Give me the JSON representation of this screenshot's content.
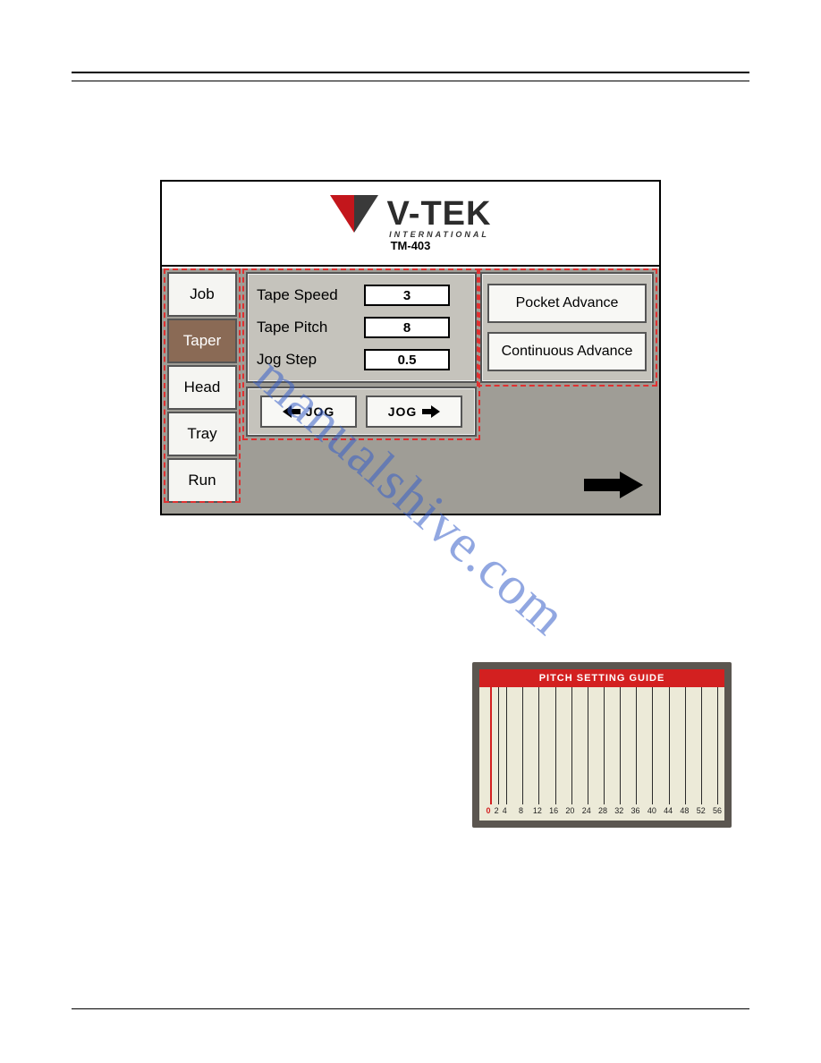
{
  "brand": "V-TEK",
  "intl": "INTERNATIONAL",
  "model": "TM-403",
  "sidebar": {
    "items": [
      {
        "label": "Job"
      },
      {
        "label": "Taper"
      },
      {
        "label": "Head"
      },
      {
        "label": "Tray"
      },
      {
        "label": "Run"
      }
    ],
    "active_index": 1
  },
  "params": {
    "tape_speed": {
      "label": "Tape Speed",
      "value": "3"
    },
    "tape_pitch": {
      "label": "Tape Pitch",
      "value": "8"
    },
    "jog_step": {
      "label": "Jog Step",
      "value": "0.5"
    }
  },
  "jog": {
    "left_label": "JOG",
    "right_label": "JOG"
  },
  "advance": {
    "pocket": "Pocket Advance",
    "continuous": "Continuous Advance"
  },
  "watermark": "manualshive.com",
  "pitch_guide": {
    "title": "PITCH SETTING GUIDE",
    "ticks": [
      0,
      2,
      4,
      8,
      12,
      16,
      20,
      24,
      28,
      32,
      36,
      40,
      44,
      48,
      52,
      56
    ],
    "max": 56,
    "title_bg": "#d32020",
    "card_bg": "#ecead8",
    "frame_bg": "#5b5650"
  },
  "colors": {
    "hmi_body_bg": "#9f9d96",
    "panel_bg": "#c5c3bc",
    "button_bg": "#f5f5f2",
    "active_tab_bg": "#8a6a55",
    "dash_border": "#e03030",
    "logo_red": "#c3161c",
    "logo_dark": "#3a3a3a"
  }
}
